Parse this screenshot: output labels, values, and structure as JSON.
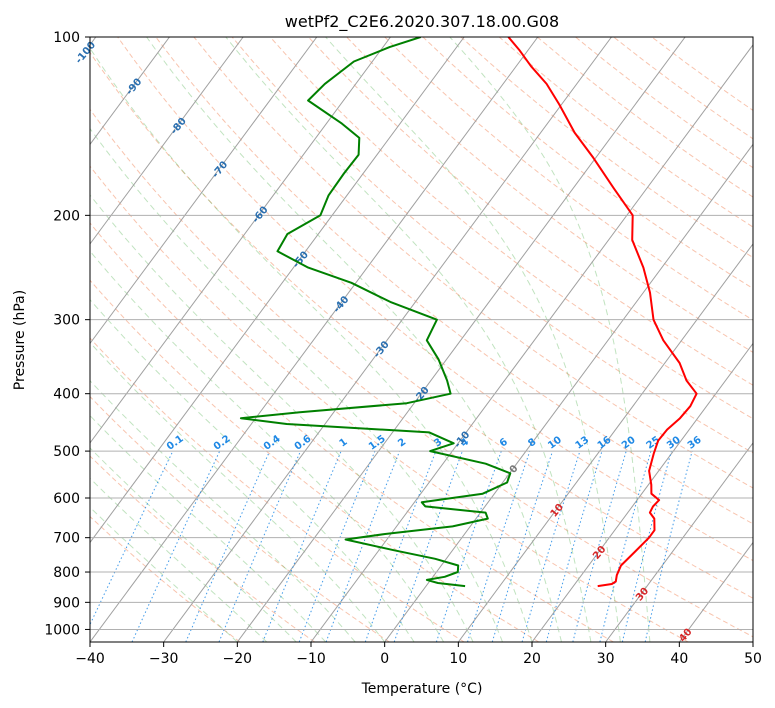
{
  "chart_data": {
    "type": "line",
    "title": "wetPf2_C2E6.2020.307.18.00.G08",
    "xlabel": "Temperature (°C)",
    "ylabel": "Pressure (hPa)",
    "xlim": [
      -40,
      50
    ],
    "ylim": [
      1050,
      100
    ],
    "y_scale": "log",
    "x_ticks": [
      -40,
      -30,
      -20,
      -10,
      0,
      10,
      20,
      30,
      40,
      50
    ],
    "y_ticks": [
      100,
      200,
      300,
      400,
      500,
      600,
      700,
      800,
      900,
      1000
    ],
    "grid": true,
    "skew": "skew-T",
    "background_lines": {
      "isotherms_solid": true,
      "dry_adiabats_dashed": true,
      "moist_adiabats_dashed": true,
      "mixing_ratio_dotted": true
    },
    "mixing_ratio_labels": [
      "0.1",
      "0.2",
      "0.4",
      "0.6",
      "1",
      "1.5",
      "2",
      "3",
      "4",
      "6",
      "8",
      "10",
      "13",
      "16",
      "20",
      "25",
      "30",
      "36"
    ],
    "mixing_ratio_values": [
      0.1,
      0.2,
      0.4,
      0.6,
      1,
      1.5,
      2,
      3,
      4,
      6,
      8,
      10,
      13,
      16,
      20,
      25,
      30,
      36
    ],
    "isotherm_labels_cold": [
      "-100",
      "-90",
      "-80",
      "-70",
      "-60",
      "-50",
      "-40",
      "-30",
      "-20",
      "-10"
    ],
    "isotherm_labels_warm": [
      "0",
      "10",
      "20",
      "30",
      "40"
    ],
    "series": [
      {
        "name": "",
        "role": "temperature",
        "color": "#ff0000",
        "points": [
          [
            845,
            23.3
          ],
          [
            838,
            25.0
          ],
          [
            830,
            25.3
          ],
          [
            810,
            24.8
          ],
          [
            780,
            24.4
          ],
          [
            740,
            24.9
          ],
          [
            700,
            25.4
          ],
          [
            680,
            25.4
          ],
          [
            650,
            24.2
          ],
          [
            635,
            23.0
          ],
          [
            620,
            22.8
          ],
          [
            605,
            23.0
          ],
          [
            590,
            21.3
          ],
          [
            570,
            20.4
          ],
          [
            540,
            18.7
          ],
          [
            505,
            17.6
          ],
          [
            480,
            16.9
          ],
          [
            460,
            17.0
          ],
          [
            440,
            17.6
          ],
          [
            420,
            17.8
          ],
          [
            400,
            17.4
          ],
          [
            380,
            14.7
          ],
          [
            355,
            12.0
          ],
          [
            325,
            7.5
          ],
          [
            300,
            4.1
          ],
          [
            270,
            0.9
          ],
          [
            245,
            -2.5
          ],
          [
            220,
            -6.8
          ],
          [
            200,
            -9.2
          ],
          [
            180,
            -14.5
          ],
          [
            160,
            -20.3
          ],
          [
            145,
            -25.4
          ],
          [
            130,
            -30.3
          ],
          [
            120,
            -34.1
          ],
          [
            112,
            -38.0
          ],
          [
            105,
            -41.3
          ],
          [
            100,
            -44.0
          ]
        ]
      },
      {
        "name": "",
        "role": "dewpoint",
        "color": "#008000",
        "points": [
          [
            845,
            5.3
          ],
          [
            835,
            1.3
          ],
          [
            825,
            -0.5
          ],
          [
            815,
            1.6
          ],
          [
            800,
            2.9
          ],
          [
            780,
            2.3
          ],
          [
            760,
            -1.5
          ],
          [
            735,
            -8.0
          ],
          [
            705,
            -15.6
          ],
          [
            690,
            -10.8
          ],
          [
            670,
            -2.4
          ],
          [
            650,
            1.6
          ],
          [
            635,
            0.7
          ],
          [
            620,
            -8.1
          ],
          [
            610,
            -9.0
          ],
          [
            590,
            -1.6
          ],
          [
            565,
            0.6
          ],
          [
            545,
            0.1
          ],
          [
            525,
            -4.2
          ],
          [
            500,
            -13.0
          ],
          [
            485,
            -10.6
          ],
          [
            465,
            -15.0
          ],
          [
            450,
            -35.2
          ],
          [
            440,
            -42.0
          ],
          [
            430,
            -34.6
          ],
          [
            415,
            -21.0
          ],
          [
            400,
            -16.0
          ],
          [
            380,
            -17.8
          ],
          [
            350,
            -21.1
          ],
          [
            325,
            -24.6
          ],
          [
            300,
            -25.3
          ],
          [
            280,
            -33.4
          ],
          [
            260,
            -40.6
          ],
          [
            245,
            -48.0
          ],
          [
            230,
            -53.8
          ],
          [
            215,
            -54.2
          ],
          [
            200,
            -51.6
          ],
          [
            185,
            -52.5
          ],
          [
            170,
            -52.6
          ],
          [
            158,
            -52.5
          ],
          [
            148,
            -54.1
          ],
          [
            140,
            -57.9
          ],
          [
            128,
            -64.8
          ],
          [
            120,
            -64.2
          ],
          [
            110,
            -62.5
          ],
          [
            104,
            -59.1
          ],
          [
            100,
            -55.9
          ]
        ]
      }
    ]
  }
}
